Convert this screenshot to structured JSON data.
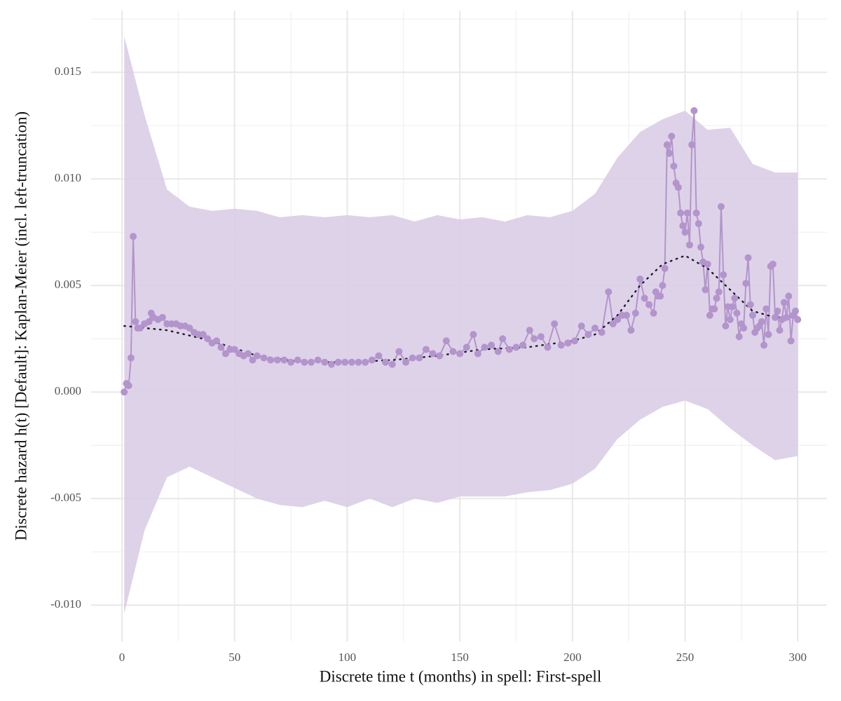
{
  "chart_data": {
    "type": "line",
    "xlabel": "Discrete time t (months) in spell: First-spell",
    "ylabel": "Discrete hazard  h(t) [Default]:  Kaplan-Meier (incl. left-truncation)",
    "xlim": [
      -13.7,
      313
    ],
    "ylim": [
      -0.0117,
      0.0179
    ],
    "xticks": [
      0,
      50,
      100,
      150,
      200,
      250,
      300
    ],
    "yticks": [
      {
        "value": -0.01,
        "label": "-0.010"
      },
      -0.005,
      {
        "value": 0,
        "label": "0.000"
      },
      0.005,
      {
        "value": 0.01,
        "label": "0.010"
      },
      0.015
    ],
    "grid": true,
    "minor_grid": true,
    "color": "#b394cc",
    "band_color": "#dacde6",
    "smooth_color": "#1a1a2e",
    "x": [
      1,
      2,
      3,
      4,
      5,
      6,
      7,
      8,
      10,
      12,
      13,
      14,
      16,
      18,
      20,
      22,
      24,
      26,
      28,
      30,
      32,
      34,
      36,
      38,
      40,
      42,
      44,
      46,
      48,
      50,
      52,
      54,
      56,
      58,
      60,
      63,
      66,
      69,
      72,
      75,
      78,
      81,
      84,
      87,
      90,
      93,
      96,
      99,
      102,
      105,
      108,
      111,
      114,
      117,
      120,
      123,
      126,
      129,
      132,
      135,
      138,
      141,
      144,
      147,
      150,
      153,
      156,
      158,
      161,
      164,
      167,
      169,
      172,
      175,
      178,
      181,
      183,
      186,
      189,
      192,
      195,
      198,
      201,
      204,
      207,
      210,
      213,
      216,
      218,
      220,
      222,
      224,
      226,
      228,
      230,
      232,
      234,
      236,
      237,
      238,
      239,
      240,
      241,
      242,
      243,
      244,
      245,
      246,
      247,
      248,
      249,
      250,
      251,
      252,
      253,
      254,
      255,
      256,
      257,
      258,
      259,
      260,
      261,
      262,
      263,
      264,
      265,
      266,
      267,
      268,
      269,
      270,
      271,
      272,
      273,
      274,
      275,
      276,
      277,
      278,
      279,
      280,
      281,
      282,
      283,
      284,
      285,
      286,
      287,
      288,
      289,
      290,
      291,
      292,
      293,
      294,
      295,
      296,
      297,
      298,
      299,
      300
    ],
    "values": [
      0.0,
      0.0004,
      0.0003,
      0.0016,
      0.0073,
      0.0033,
      0.003,
      0.003,
      0.0032,
      0.0033,
      0.0037,
      0.0035,
      0.0034,
      0.0035,
      0.0032,
      0.0032,
      0.0032,
      0.0031,
      0.0031,
      0.003,
      0.0028,
      0.0027,
      0.0027,
      0.0025,
      0.0023,
      0.0024,
      0.0021,
      0.0018,
      0.002,
      0.002,
      0.0018,
      0.0017,
      0.0018,
      0.0015,
      0.0017,
      0.0016,
      0.0015,
      0.0015,
      0.0015,
      0.0014,
      0.0015,
      0.0014,
      0.0014,
      0.0015,
      0.0014,
      0.0013,
      0.0014,
      0.0014,
      0.0014,
      0.0014,
      0.0014,
      0.0015,
      0.0017,
      0.0014,
      0.0013,
      0.0019,
      0.0014,
      0.0016,
      0.0016,
      0.002,
      0.0018,
      0.0017,
      0.0024,
      0.0019,
      0.0018,
      0.0021,
      0.0027,
      0.0018,
      0.0021,
      0.0022,
      0.0019,
      0.0025,
      0.002,
      0.0021,
      0.0022,
      0.0029,
      0.0025,
      0.0026,
      0.0021,
      0.0032,
      0.0022,
      0.0023,
      0.0024,
      0.0031,
      0.0027,
      0.003,
      0.0028,
      0.0047,
      0.0032,
      0.0034,
      0.0036,
      0.0036,
      0.0029,
      0.0037,
      0.0053,
      0.0044,
      0.0041,
      0.0037,
      0.0047,
      0.0045,
      0.0045,
      0.005,
      0.0058,
      0.0116,
      0.0112,
      0.012,
      0.0106,
      0.0098,
      0.0096,
      0.0084,
      0.0078,
      0.0075,
      0.0084,
      0.0069,
      0.0116,
      0.0132,
      0.0084,
      0.0079,
      0.0068,
      0.0061,
      0.0048,
      0.006,
      0.0036,
      0.0039,
      0.0039,
      0.0044,
      0.0047,
      0.0087,
      0.0055,
      0.0031,
      0.004,
      0.0034,
      0.004,
      0.0044,
      0.0037,
      0.0026,
      0.0032,
      0.003,
      0.0051,
      0.0063,
      0.0041,
      0.0036,
      0.0028,
      0.003,
      0.0031,
      0.0033,
      0.0022,
      0.0039,
      0.0027,
      0.0059,
      0.006,
      0.0035,
      0.0038,
      0.0029,
      0.0034,
      0.0042,
      0.0035,
      0.0045,
      0.0024,
      0.0036,
      0.0038,
      0.0034
    ],
    "smooth_x": [
      1,
      20,
      40,
      60,
      80,
      100,
      120,
      140,
      160,
      180,
      200,
      210,
      220,
      230,
      240,
      250,
      260,
      270,
      280,
      290,
      300
    ],
    "smooth_values": [
      0.0031,
      0.0029,
      0.0024,
      0.0017,
      0.0014,
      0.0014,
      0.0015,
      0.0017,
      0.002,
      0.0021,
      0.0024,
      0.0027,
      0.0036,
      0.005,
      0.006,
      0.0064,
      0.0058,
      0.0048,
      0.0038,
      0.0035,
      0.0035
    ],
    "band_x": [
      1,
      10,
      20,
      30,
      40,
      50,
      60,
      70,
      80,
      90,
      100,
      110,
      120,
      130,
      140,
      150,
      160,
      170,
      180,
      190,
      200,
      210,
      220,
      230,
      240,
      250,
      260,
      270,
      280,
      290,
      300
    ],
    "band_upper": [
      0.0167,
      0.013,
      0.0095,
      0.0087,
      0.0085,
      0.0086,
      0.0085,
      0.0082,
      0.0083,
      0.0082,
      0.0083,
      0.0082,
      0.0083,
      0.008,
      0.0083,
      0.0081,
      0.0082,
      0.008,
      0.0083,
      0.0082,
      0.0085,
      0.0093,
      0.011,
      0.0122,
      0.0128,
      0.0132,
      0.0123,
      0.0124,
      0.0107,
      0.0103,
      0.0103
    ],
    "band_lower": [
      -0.0104,
      -0.0065,
      -0.004,
      -0.0035,
      -0.004,
      -0.0045,
      -0.005,
      -0.0053,
      -0.0054,
      -0.0051,
      -0.0054,
      -0.005,
      -0.0054,
      -0.005,
      -0.0052,
      -0.0049,
      -0.0049,
      -0.0049,
      -0.0047,
      -0.0046,
      -0.0043,
      -0.0036,
      -0.0022,
      -0.0013,
      -0.0007,
      -0.0004,
      -0.0008,
      -0.0017,
      -0.0025,
      -0.0032,
      -0.003
    ]
  }
}
